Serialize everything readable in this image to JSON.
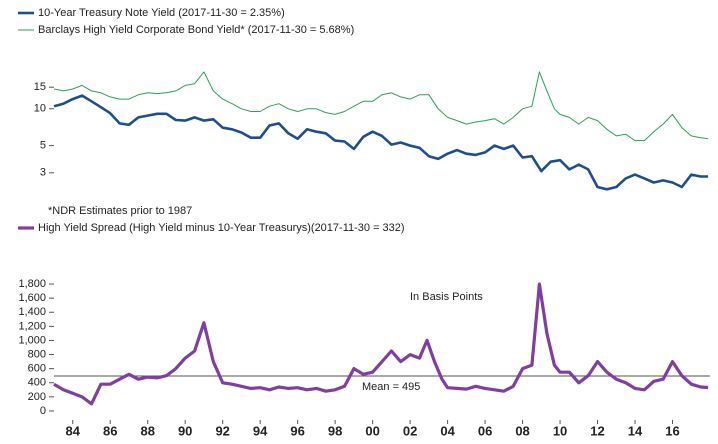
{
  "chart_data": [
    {
      "type": "line",
      "log_scale": true,
      "ylim": [
        1.8,
        25
      ],
      "xlim": [
        1983,
        2018
      ],
      "yticks": [
        3,
        5,
        10,
        15
      ],
      "series": [
        {
          "name": "10-Year Treasury Note Yield (2017-11-30 = 2.35%)",
          "color": "#1f4e8c",
          "x": [
            1983,
            1983.5,
            1984,
            1984.5,
            1985,
            1985.5,
            1986,
            1986.5,
            1987,
            1987.5,
            1988,
            1988.5,
            1989,
            1989.5,
            1990,
            1990.5,
            1991,
            1991.5,
            1992,
            1992.5,
            1993,
            1993.5,
            1994,
            1994.5,
            1995,
            1995.5,
            1996,
            1996.5,
            1997,
            1997.5,
            1998,
            1998.5,
            1999,
            1999.5,
            2000,
            2000.5,
            2001,
            2001.5,
            2002,
            2002.5,
            2003,
            2003.5,
            2004,
            2004.5,
            2005,
            2005.5,
            2006,
            2006.5,
            2007,
            2007.5,
            2008,
            2008.5,
            2009,
            2009.5,
            2010,
            2010.5,
            2011,
            2011.5,
            2012,
            2012.5,
            2013,
            2013.5,
            2014,
            2014.5,
            2015,
            2015.5,
            2016,
            2016.5,
            2017,
            2017.5,
            2017.9
          ],
          "values": [
            10.5,
            11,
            12,
            12.8,
            11.5,
            10.3,
            9.2,
            7.6,
            7.4,
            8.5,
            8.8,
            9.1,
            9.1,
            8.1,
            8.0,
            8.5,
            8.0,
            8.2,
            7.0,
            6.8,
            6.4,
            5.8,
            5.8,
            7.3,
            7.6,
            6.3,
            5.7,
            6.8,
            6.5,
            6.3,
            5.5,
            5.4,
            4.7,
            5.9,
            6.5,
            6.0,
            5.1,
            5.3,
            5.0,
            4.8,
            4.1,
            3.9,
            4.3,
            4.6,
            4.3,
            4.2,
            4.4,
            5.0,
            4.7,
            5.0,
            4.0,
            4.1,
            3.1,
            3.7,
            3.8,
            3.2,
            3.5,
            3.2,
            2.3,
            2.2,
            2.3,
            2.7,
            2.9,
            2.7,
            2.5,
            2.6,
            2.5,
            2.3,
            2.9,
            2.8,
            2.8
          ]
        },
        {
          "name": "Barclays High Yield Corporate Bond Yield* (2017-11-30 = 5.68%)",
          "color": "#2ca05a",
          "x": [
            1983,
            1983.5,
            1984,
            1984.5,
            1985,
            1985.5,
            1986,
            1986.5,
            1987,
            1987.5,
            1988,
            1988.5,
            1989,
            1989.5,
            1990,
            1990.5,
            1991,
            1991.5,
            1992,
            1992.5,
            1993,
            1993.5,
            1994,
            1994.5,
            1995,
            1995.5,
            1996,
            1996.5,
            1997,
            1997.5,
            1998,
            1998.5,
            1999,
            1999.5,
            2000,
            2000.5,
            2001,
            2001.5,
            2002,
            2002.5,
            2003,
            2003.5,
            2004,
            2004.5,
            2005,
            2005.5,
            2006,
            2006.5,
            2007,
            2007.5,
            2008,
            2008.5,
            2008.9,
            2009.3,
            2009.7,
            2010,
            2010.5,
            2011,
            2011.5,
            2012,
            2012.5,
            2013,
            2013.5,
            2014,
            2014.5,
            2015,
            2015.5,
            2016,
            2016.5,
            2017,
            2017.5,
            2017.9
          ],
          "values": [
            14.5,
            14,
            14.5,
            15.5,
            14,
            13.5,
            12.5,
            12,
            12,
            13,
            13.5,
            13.3,
            13.5,
            14,
            15.5,
            16,
            20,
            14,
            12,
            11,
            10,
            9.5,
            9.5,
            10.5,
            11,
            10,
            9.5,
            10,
            10,
            9.3,
            9,
            9.5,
            10.5,
            11.5,
            11.5,
            13,
            13.5,
            12.5,
            12,
            13,
            13,
            10,
            8.5,
            8,
            7.5,
            7.8,
            8,
            8.3,
            7.5,
            8.5,
            10,
            10.5,
            20,
            14,
            10,
            9,
            8.5,
            7.5,
            8.5,
            8,
            6.8,
            6,
            6.2,
            5.5,
            5.5,
            6.5,
            7.5,
            9,
            7,
            6,
            5.8,
            5.7
          ]
        }
      ],
      "annotations": [
        "*NDR Estimates prior to 1987"
      ]
    },
    {
      "type": "line",
      "ylim": [
        -100,
        1900
      ],
      "xlim": [
        1983,
        2018
      ],
      "yticks": [
        0,
        200,
        400,
        600,
        800,
        {
          "value": 1000,
          "label": "1,000"
        },
        {
          "value": 1200,
          "label": "1,200"
        },
        {
          "value": 1400,
          "label": "1,400"
        },
        {
          "value": 1600,
          "label": "1,600"
        },
        {
          "value": 1800,
          "label": "1,800"
        }
      ],
      "xticks": [
        {
          "value": 1984,
          "label": "84"
        },
        {
          "value": 1986,
          "label": "86"
        },
        {
          "value": 1988,
          "label": "88"
        },
        {
          "value": 1990,
          "label": "90"
        },
        {
          "value": 1992,
          "label": "92"
        },
        {
          "value": 1994,
          "label": "94"
        },
        {
          "value": 1996,
          "label": "96"
        },
        {
          "value": 1998,
          "label": "98"
        },
        {
          "value": 2000,
          "label": "00"
        },
        {
          "value": 2002,
          "label": "02"
        },
        {
          "value": 2004,
          "label": "04"
        },
        {
          "value": 2006,
          "label": "06"
        },
        {
          "value": 2008,
          "label": "08"
        },
        {
          "value": 2010,
          "label": "10"
        },
        {
          "value": 2012,
          "label": "12"
        },
        {
          "value": 2014,
          "label": "14"
        },
        {
          "value": 2016,
          "label": "16"
        }
      ],
      "series": [
        {
          "name": "High Yield Spread (High Yield minus 10-Year Treasurys)(2017-11-30 = 332)",
          "color": "#7e3fa0",
          "x": [
            1983,
            1983.5,
            1984,
            1984.5,
            1985,
            1985.5,
            1986,
            1986.5,
            1987,
            1987.5,
            1988,
            1988.5,
            1989,
            1989.5,
            1990,
            1990.5,
            1991,
            1991.5,
            1992,
            1992.5,
            1993,
            1993.5,
            1994,
            1994.5,
            1995,
            1995.5,
            1996,
            1996.5,
            1997,
            1997.5,
            1998,
            1998.5,
            1999,
            1999.5,
            2000,
            2000.5,
            2001,
            2001.5,
            2002,
            2002.5,
            2002.9,
            2003.3,
            2003.7,
            2004,
            2004.5,
            2005,
            2005.5,
            2006,
            2006.5,
            2007,
            2007.5,
            2008,
            2008.5,
            2008.9,
            2009.3,
            2009.7,
            2010,
            2010.5,
            2011,
            2011.5,
            2012,
            2012.5,
            2013,
            2013.5,
            2014,
            2014.5,
            2015,
            2015.5,
            2016,
            2016.5,
            2017,
            2017.5,
            2017.9
          ],
          "values": [
            380,
            300,
            250,
            200,
            100,
            380,
            380,
            450,
            520,
            450,
            480,
            470,
            500,
            600,
            750,
            850,
            1250,
            700,
            400,
            380,
            350,
            320,
            330,
            300,
            340,
            320,
            330,
            300,
            320,
            280,
            300,
            350,
            600,
            520,
            550,
            700,
            850,
            700,
            800,
            750,
            1000,
            700,
            450,
            330,
            320,
            310,
            350,
            320,
            300,
            280,
            350,
            600,
            650,
            1800,
            1100,
            650,
            550,
            550,
            400,
            500,
            700,
            550,
            450,
            400,
            320,
            300,
            420,
            450,
            700,
            500,
            380,
            340,
            332
          ]
        }
      ],
      "mean": 495,
      "mean_label": "Mean = 495",
      "annotations": [
        "In Basis Points"
      ]
    }
  ]
}
